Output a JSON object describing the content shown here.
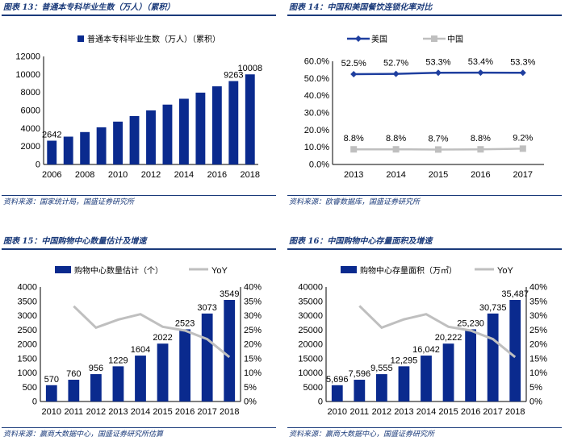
{
  "colors": {
    "bar": "#0a2a8e",
    "line_us": "#1f3f9f",
    "line_gray": "#bfbfbf",
    "title": "#1a3a7a"
  },
  "panels": [
    {
      "title": "图表 13：普通本专科毕业生数（万人）（累积）",
      "source": "资料来源：国家统计局，国盛证券研究所"
    },
    {
      "title": "图表 14：中国和美国餐饮连锁化率对比",
      "source": "资料来源：欧睿数据库，国盛证券研究所"
    },
    {
      "title": "图表 15：中国购物中心数量估计及增速",
      "source": "资料来源：赢商大数据中心，国盛证券研究所估算"
    },
    {
      "title": "图表 16：中国购物中心存量面积及增速",
      "source": "资料来源：赢商大数据中心，国盛证券研究所"
    }
  ],
  "chart_data": [
    {
      "type": "bar",
      "title": "图表 13：普通本专科毕业生数（万人）（累积）",
      "legend": [
        "普通本专科毕业生数（万人）（累积）"
      ],
      "categories": [
        "2006",
        "2007",
        "2008",
        "2009",
        "2010",
        "2011",
        "2012",
        "2013",
        "2014",
        "2015",
        "2016",
        "2017",
        "2018"
      ],
      "values": [
        2642,
        3090,
        3600,
        4130,
        4760,
        5380,
        6010,
        6650,
        7300,
        7980,
        8680,
        9263,
        10008
      ],
      "labels": {
        "0": "2642",
        "11": "9263",
        "12": "10008"
      },
      "xticks": [
        "2006",
        "2008",
        "2010",
        "2012",
        "2014",
        "2016",
        "2018"
      ],
      "ylim": [
        0,
        12000
      ],
      "yticks": [
        "0",
        "2000",
        "4000",
        "6000",
        "8000",
        "10000",
        "12000"
      ]
    },
    {
      "type": "line",
      "title": "图表 14：中国和美国餐饮连锁化率对比",
      "categories": [
        "2013",
        "2014",
        "2015",
        "2016",
        "2017"
      ],
      "series": [
        {
          "name": "美国",
          "values": [
            52.5,
            52.7,
            53.3,
            53.4,
            53.3
          ],
          "labels": [
            "52.5%",
            "52.7%",
            "53.3%",
            "53.4%",
            "53.3%"
          ]
        },
        {
          "name": "中国",
          "values": [
            8.8,
            8.8,
            8.7,
            8.8,
            9.2
          ],
          "labels": [
            "8.8%",
            "8.8%",
            "8.7%",
            "8.8%",
            "9.2%"
          ]
        }
      ],
      "ylim": [
        0,
        60
      ],
      "yticks": [
        "0.0%",
        "10.0%",
        "20.0%",
        "30.0%",
        "40.0%",
        "50.0%",
        "60.0%"
      ]
    },
    {
      "type": "bar",
      "title": "图表 15：中国购物中心数量估计及增速",
      "legend": [
        "购物中心数量估计（个）",
        "YoY"
      ],
      "categories": [
        "2010",
        "2011",
        "2012",
        "2013",
        "2014",
        "2015",
        "2016",
        "2017",
        "2018"
      ],
      "values": [
        570,
        760,
        956,
        1229,
        1604,
        2022,
        2523,
        3073,
        3549
      ],
      "labels": [
        "570",
        "760",
        "956",
        "1229",
        "1604",
        "2022",
        "2523",
        "3073",
        "3549"
      ],
      "ylim": [
        0,
        4000
      ],
      "yticks": [
        "0",
        "500",
        "1000",
        "1500",
        "2000",
        "2500",
        "3000",
        "3500",
        "4000"
      ],
      "yoy": [
        null,
        33.3,
        25.8,
        28.6,
        30.5,
        26.1,
        24.8,
        21.8,
        15.5
      ],
      "y2lim": [
        0,
        40
      ],
      "y2ticks": [
        "0%",
        "5%",
        "10%",
        "15%",
        "20%",
        "25%",
        "30%",
        "35%",
        "40%"
      ]
    },
    {
      "type": "bar",
      "title": "图表 16：中国购物中心存量面积及增速",
      "legend": [
        "购物中心存量面积（万㎡）",
        "YoY"
      ],
      "categories": [
        "2010",
        "2011",
        "2012",
        "2013",
        "2014",
        "2015",
        "2016",
        "2017",
        "2018"
      ],
      "values": [
        5696,
        7596,
        9555,
        12295,
        16042,
        20222,
        25230,
        30735,
        35487
      ],
      "labels": [
        "5,696",
        "7,596",
        "9,555",
        "12,295",
        "16,042",
        "20,222",
        "25,230",
        "30,735",
        "35,487"
      ],
      "ylim": [
        0,
        40000
      ],
      "yticks": [
        "0",
        "5000",
        "10000",
        "15000",
        "20000",
        "25000",
        "30000",
        "35000",
        "40000"
      ],
      "yoy": [
        null,
        33.4,
        25.8,
        28.7,
        30.5,
        26.1,
        24.8,
        21.8,
        15.5
      ],
      "y2lim": [
        0,
        40
      ],
      "y2ticks": [
        "0%",
        "5%",
        "10%",
        "15%",
        "20%",
        "25%",
        "30%",
        "35%",
        "40%"
      ]
    }
  ]
}
